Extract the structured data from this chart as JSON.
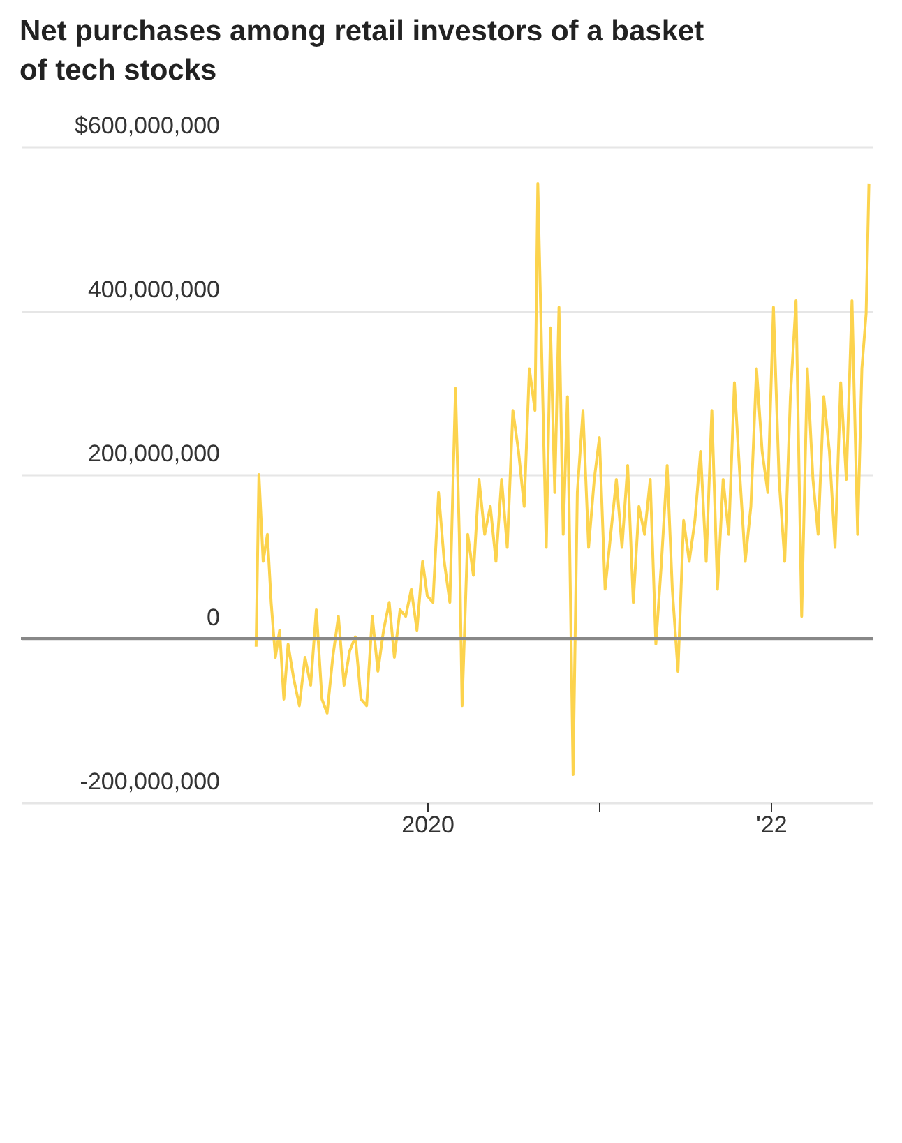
{
  "chart_data": {
    "type": "line",
    "title": "Net purchases among retail investors of a basket of tech stocks",
    "x": [
      "2019-01-02",
      "2019-01-08",
      "2019-01-17",
      "2019-01-26",
      "2019-02-03",
      "2019-02-12",
      "2019-02-21",
      "2019-03-02",
      "2019-03-11",
      "2019-03-23",
      "2019-04-04",
      "2019-04-16",
      "2019-04-28",
      "2019-05-10",
      "2019-05-22",
      "2019-06-02",
      "2019-06-14",
      "2019-06-26",
      "2019-07-08",
      "2019-07-20",
      "2019-08-01",
      "2019-08-13",
      "2019-08-25",
      "2019-09-06",
      "2019-09-18",
      "2019-09-30",
      "2019-10-12",
      "2019-10-23",
      "2019-11-04",
      "2019-11-16",
      "2019-11-28",
      "2019-12-10",
      "2019-12-22",
      "2020-01-01",
      "2020-01-13",
      "2020-01-25",
      "2020-02-06",
      "2020-02-18",
      "2020-03-01",
      "2020-03-09",
      "2020-03-15",
      "2020-03-27",
      "2020-04-08",
      "2020-04-20",
      "2020-05-02",
      "2020-05-14",
      "2020-05-26",
      "2020-06-07",
      "2020-06-19",
      "2020-07-01",
      "2020-07-13",
      "2020-07-25",
      "2020-08-05",
      "2020-08-17",
      "2020-08-23",
      "2020-09-01",
      "2020-09-10",
      "2020-09-19",
      "2020-09-28",
      "2020-10-07",
      "2020-10-16",
      "2020-10-25",
      "2020-11-06",
      "2020-11-15",
      "2020-11-27",
      "2020-12-09",
      "2020-12-21",
      "2021-01-01",
      "2021-01-13",
      "2021-01-25",
      "2021-02-06",
      "2021-02-18",
      "2021-03-02",
      "2021-03-14",
      "2021-03-26",
      "2021-04-07",
      "2021-04-19",
      "2021-05-01",
      "2021-05-13",
      "2021-05-25",
      "2021-06-05",
      "2021-06-17",
      "2021-06-29",
      "2021-07-11",
      "2021-07-23",
      "2021-08-04",
      "2021-08-16",
      "2021-08-28",
      "2021-09-09",
      "2021-09-21",
      "2021-10-03",
      "2021-10-15",
      "2021-10-27",
      "2021-11-07",
      "2021-11-19",
      "2021-12-01",
      "2021-12-13",
      "2021-12-25",
      "2022-01-06",
      "2022-01-18",
      "2022-01-30",
      "2022-02-11",
      "2022-02-23",
      "2022-03-07",
      "2022-03-19",
      "2022-03-31",
      "2022-04-11",
      "2022-04-23",
      "2022-05-05",
      "2022-05-17",
      "2022-05-29",
      "2022-06-10",
      "2022-06-22",
      "2022-07-04",
      "2022-07-13",
      "2022-07-22",
      "2022-07-28"
    ],
    "values": [
      -10000000,
      200000000,
      94000000,
      127000000,
      44000000,
      -23000000,
      10000000,
      -74000000,
      -7000000,
      -49000000,
      -82000000,
      -23000000,
      -57000000,
      35000000,
      -74000000,
      -91000000,
      -23000000,
      27000000,
      -57000000,
      -15000000,
      2000000,
      -74000000,
      -82000000,
      27000000,
      -40000000,
      10000000,
      44000000,
      -23000000,
      35000000,
      27000000,
      60000000,
      10000000,
      94000000,
      52000000,
      44000000,
      178000000,
      94000000,
      44000000,
      305000000,
      127000000,
      -82000000,
      127000000,
      77000000,
      194000000,
      127000000,
      161000000,
      94000000,
      194000000,
      111000000,
      278000000,
      228000000,
      161000000,
      329000000,
      278000000,
      555000000,
      329000000,
      111000000,
      379000000,
      178000000,
      404000000,
      127000000,
      295000000,
      -166000000,
      178000000,
      278000000,
      111000000,
      194000000,
      245000000,
      60000000,
      127000000,
      194000000,
      111000000,
      211000000,
      44000000,
      161000000,
      127000000,
      194000000,
      -7000000,
      94000000,
      211000000,
      60000000,
      -40000000,
      144000000,
      94000000,
      144000000,
      228000000,
      94000000,
      278000000,
      60000000,
      194000000,
      127000000,
      312000000,
      194000000,
      94000000,
      161000000,
      329000000,
      228000000,
      178000000,
      404000000,
      194000000,
      94000000,
      295000000,
      412000000,
      27000000,
      329000000,
      194000000,
      127000000,
      295000000,
      228000000,
      111000000,
      312000000,
      194000000,
      412000000,
      127000000,
      329000000,
      396000000,
      555000000
    ],
    "color": "#fcd34d",
    "xlim": [
      "2017-08-20",
      "2022-08-05"
    ],
    "xticks": [
      {
        "value": "2020-01-01",
        "label": "2020"
      },
      {
        "value": "2021-01-01",
        "label": null
      },
      {
        "value": "2022-01-01",
        "label": "'22"
      }
    ],
    "ylim": [
      -200000000,
      600000000
    ],
    "yticks": [
      {
        "value": -200000000,
        "label": "-200,000,000"
      },
      0,
      {
        "value": 200000000,
        "label": "200,000,000"
      },
      {
        "value": 400000000,
        "label": "400,000,000"
      },
      {
        "value": 600000000,
        "label": "$600,000,000"
      }
    ],
    "grid": "y",
    "ref_lines": [
      {
        "axis": "y",
        "value": 0,
        "color": "#888888"
      }
    ]
  }
}
